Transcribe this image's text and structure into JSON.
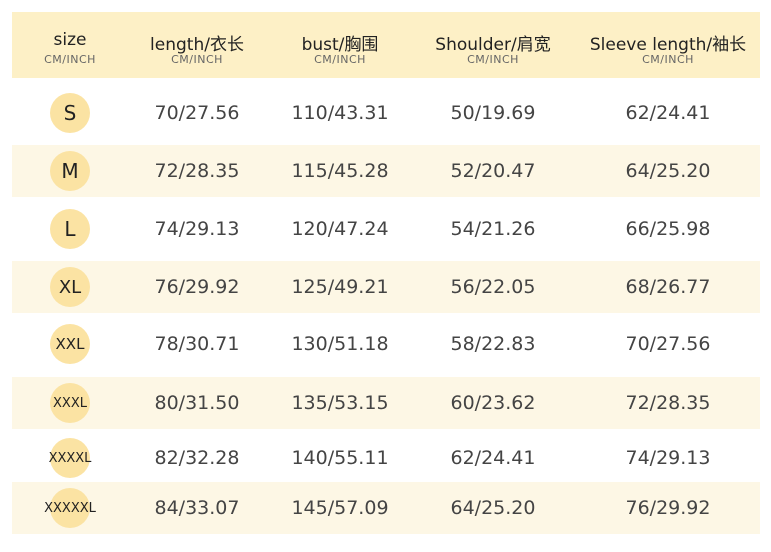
{
  "table": {
    "headers": [
      {
        "title": "size",
        "unit": "CM/INCH"
      },
      {
        "title": "length/衣长",
        "unit": "CM/INCH"
      },
      {
        "title": "bust/胸围",
        "unit": "CM/INCH"
      },
      {
        "title": "Shoulder/肩宽",
        "unit": "CM/INCH"
      },
      {
        "title": "Sleeve length/袖长",
        "unit": "CM/INCH"
      }
    ],
    "rows": [
      [
        "S",
        "70/27.56",
        "110/43.31",
        "50/19.69",
        "62/24.41"
      ],
      [
        "M",
        "72/28.35",
        "115/45.28",
        "52/20.47",
        "64/25.20"
      ],
      [
        "L",
        "74/29.13",
        "120/47.24",
        "54/21.26",
        "66/25.98"
      ],
      [
        "XL",
        "76/29.92",
        "125/49.21",
        "56/22.05",
        "68/26.77"
      ],
      [
        "XXL",
        "78/30.71",
        "130/51.18",
        "58/22.83",
        "70/27.56"
      ],
      [
        "XXXL",
        "80/31.50",
        "135/53.15",
        "60/23.62",
        "72/28.35"
      ],
      [
        "XXXXL",
        "82/32.28",
        "140/55.11",
        "62/24.41",
        "74/29.13"
      ],
      [
        "XXXXXL",
        "84/33.07",
        "145/57.09",
        "64/25.20",
        "76/29.92"
      ]
    ]
  }
}
